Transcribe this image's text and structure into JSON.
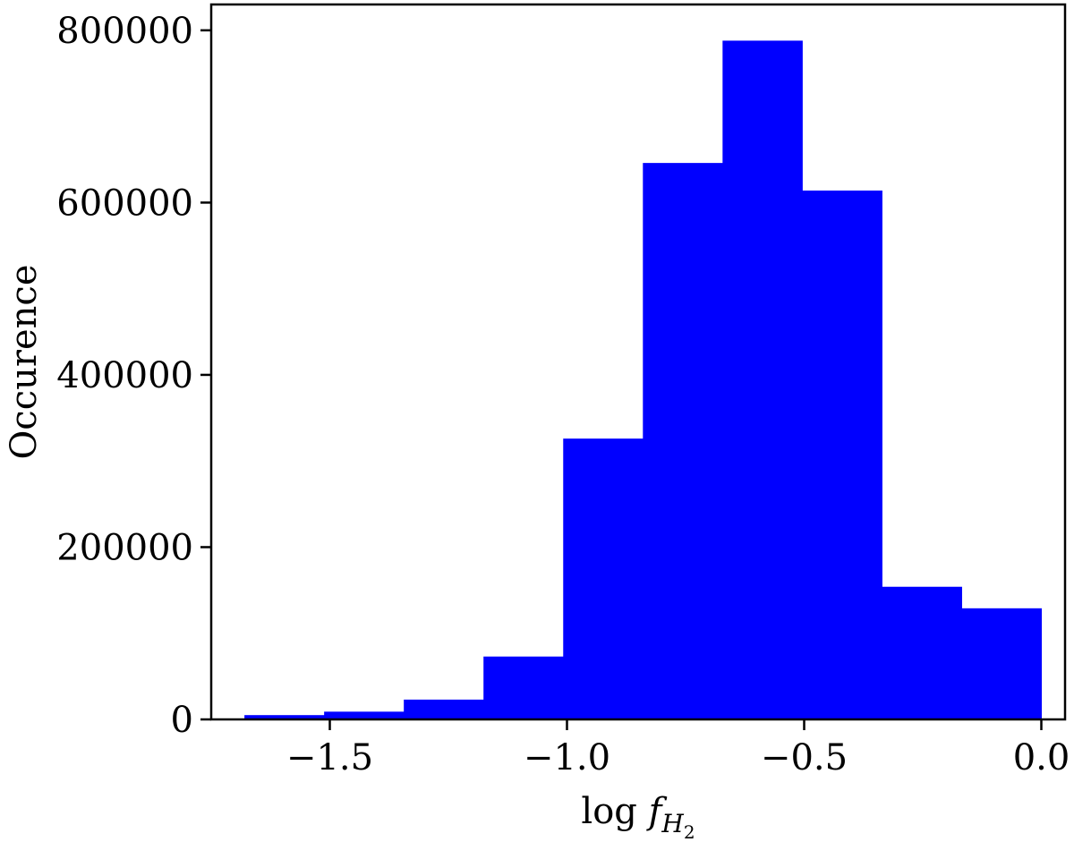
{
  "chart_data": {
    "type": "bar",
    "subtype": "histogram",
    "bar_color": "#0000ff",
    "xlabel": "log f_{H2}",
    "xlabel_parts": {
      "prefix": "log ",
      "italic": "f",
      "sub": "H",
      "subsub": "2"
    },
    "ylabel": "Occurence",
    "xlim": [
      -1.75,
      0.05
    ],
    "ylim": [
      0,
      830000
    ],
    "xticks": [
      -1.5,
      -1.0,
      -0.5,
      0.0
    ],
    "xtick_labels": [
      "−1.5",
      "−1.0",
      "−0.5",
      "0.0"
    ],
    "yticks": [
      0,
      200000,
      400000,
      600000,
      800000
    ],
    "ytick_labels": [
      "0",
      "200000",
      "400000",
      "600000",
      "800000"
    ],
    "bin_edges": [
      -1.68,
      -1.512,
      -1.344,
      -1.176,
      -1.008,
      -0.84,
      -0.672,
      -0.504,
      -0.336,
      -0.168,
      0.0
    ],
    "values": [
      5000,
      9000,
      23000,
      73000,
      326000,
      646000,
      788000,
      614000,
      154000,
      129000
    ],
    "grid": false,
    "legend": "none"
  }
}
